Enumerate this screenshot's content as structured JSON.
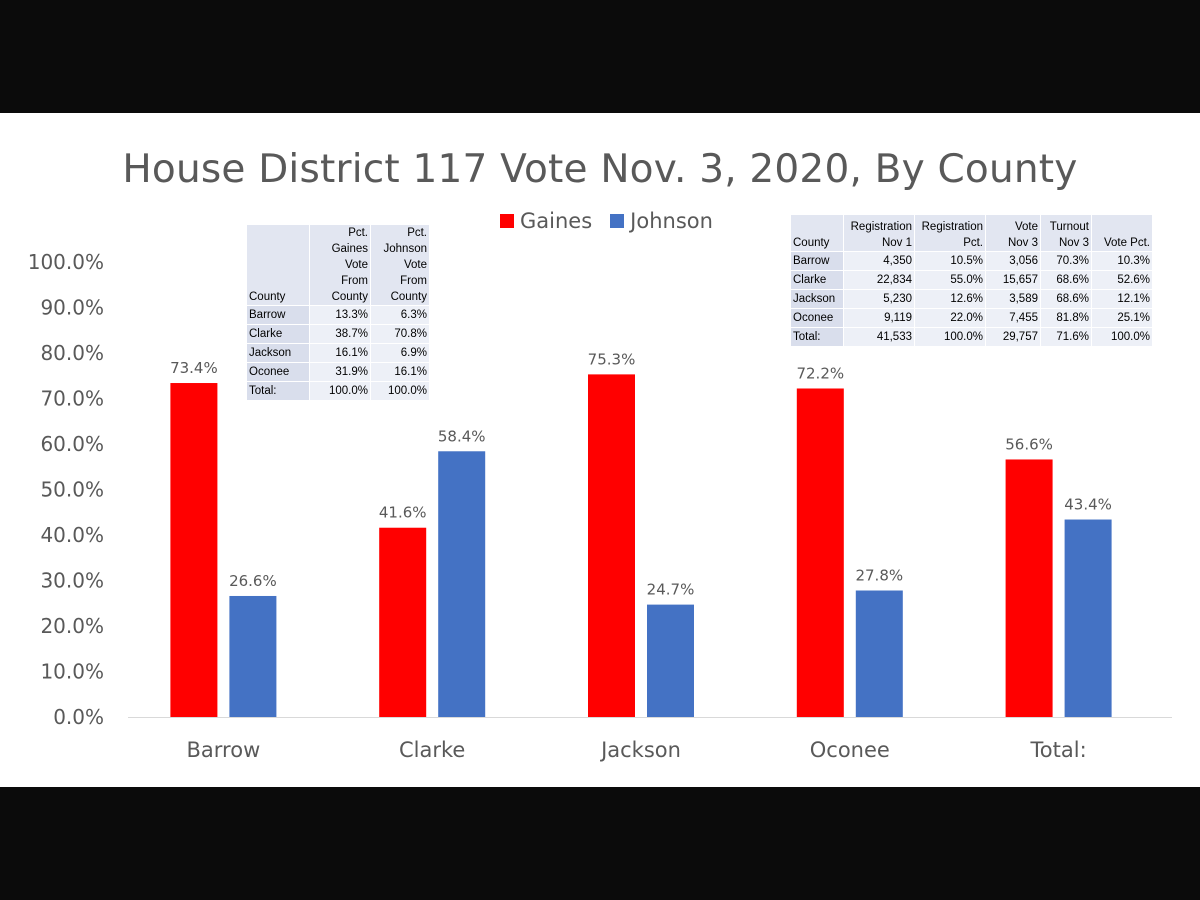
{
  "chart_data": {
    "type": "bar",
    "title": "House District 117 Vote Nov. 3, 2020, By County",
    "categories": [
      "Barrow",
      "Clarke",
      "Jackson",
      "Oconee",
      "Total:"
    ],
    "series": [
      {
        "name": "Gaines",
        "color": "#ff0000",
        "values": [
          73.4,
          41.6,
          75.3,
          72.2,
          56.6
        ],
        "labels": [
          "73.4%",
          "41.6%",
          "75.3%",
          "72.2%",
          "56.6%"
        ]
      },
      {
        "name": "Johnson",
        "color": "#4472c4",
        "values": [
          26.6,
          58.4,
          24.7,
          27.8,
          43.4
        ],
        "labels": [
          "26.6%",
          "58.4%",
          "24.7%",
          "27.8%",
          "43.4%"
        ]
      }
    ],
    "ylim": [
      0,
      100
    ],
    "yticks": [
      "0.0%",
      "10.0%",
      "20.0%",
      "30.0%",
      "40.0%",
      "50.0%",
      "60.0%",
      "70.0%",
      "80.0%",
      "90.0%",
      "100.0%"
    ],
    "legend_position": "top-center",
    "grid": false
  },
  "table_vote_from_county": {
    "headers": [
      [
        "County"
      ],
      [
        "Pct.",
        "Gaines",
        "Vote",
        "From",
        "County"
      ],
      [
        "Pct.",
        "Johnson",
        "Vote",
        "From",
        "County"
      ]
    ],
    "rows": [
      [
        "Barrow",
        "13.3%",
        "6.3%"
      ],
      [
        "Clarke",
        "38.7%",
        "70.8%"
      ],
      [
        "Jackson",
        "16.1%",
        "6.9%"
      ],
      [
        "Oconee",
        "31.9%",
        "16.1%"
      ],
      [
        "Total:",
        "100.0%",
        "100.0%"
      ]
    ]
  },
  "table_registration": {
    "headers": [
      [
        "County"
      ],
      [
        "Registration",
        "Nov 1"
      ],
      [
        "Registration",
        "Pct."
      ],
      [
        "Vote",
        "Nov 3"
      ],
      [
        "Turnout",
        "Nov 3"
      ],
      [
        "Vote Pct."
      ]
    ],
    "rows": [
      [
        "Barrow",
        "4,350",
        "10.5%",
        "3,056",
        "70.3%",
        "10.3%"
      ],
      [
        "Clarke",
        "22,834",
        "55.0%",
        "15,657",
        "68.6%",
        "52.6%"
      ],
      [
        "Jackson",
        "5,230",
        "12.6%",
        "3,589",
        "68.6%",
        "12.1%"
      ],
      [
        "Oconee",
        "9,119",
        "22.0%",
        "7,455",
        "81.8%",
        "25.1%"
      ],
      [
        "Total:",
        "41,533",
        "100.0%",
        "29,757",
        "71.6%",
        "100.0%"
      ]
    ]
  }
}
